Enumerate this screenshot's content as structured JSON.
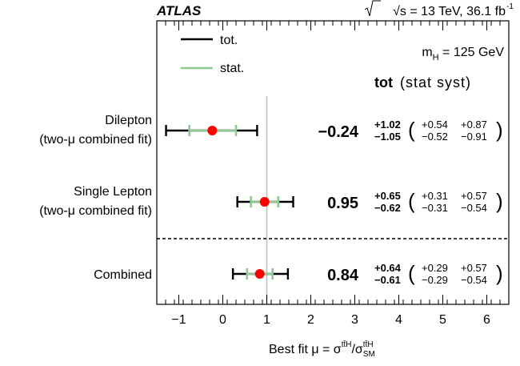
{
  "header": {
    "experiment": "ATLAS",
    "sqrt_symbol": "√s",
    "energy_text": " = 13 TeV, 36.1 fb",
    "lumi_exp": "-1"
  },
  "legend": {
    "tot_label": "tot.",
    "stat_label": "stat."
  },
  "mass_label": {
    "prefix": "m",
    "sub": "H",
    "suffix": " = 125 GeV"
  },
  "column_header": {
    "tot": "tot",
    "rest": "(stat syst)"
  },
  "xaxis": {
    "label_prefix": "Best fit μ = σ",
    "num_sup": "tt̄H",
    "slash": "/σ",
    "den_sup": "tt̄H",
    "den_sub": "SM"
  },
  "colors": {
    "tot": "#000000",
    "stat": "#8fc98f",
    "point": "#ff0000",
    "sm_line": "#c0c0c0"
  },
  "chart_data": {
    "type": "scatter",
    "xlim": [
      -1.5,
      6.5
    ],
    "x_ticks": [
      -1,
      0,
      1,
      2,
      3,
      4,
      5,
      6
    ],
    "x_tick_labels": [
      "−1",
      "0",
      "1",
      "2",
      "3",
      "4",
      "5",
      "6"
    ],
    "sm_reference": 1,
    "rows": [
      {
        "name_lines": [
          "Dilepton",
          "(two-μ combined fit)"
        ],
        "value": -0.24,
        "value_label": "−0.24",
        "tot_up": 1.02,
        "tot_down": 1.05,
        "tot_up_label": "+1.02",
        "tot_down_label": "−1.05",
        "stat_up": 0.54,
        "stat_down": 0.52,
        "stat_up_label": "+0.54",
        "stat_down_label": "−0.52",
        "syst_up_label": "+0.87",
        "syst_down_label": "−0.91"
      },
      {
        "name_lines": [
          "Single Lepton",
          "(two-μ combined fit)"
        ],
        "value": 0.95,
        "value_label": "0.95",
        "tot_up": 0.65,
        "tot_down": 0.62,
        "tot_up_label": "+0.65",
        "tot_down_label": "−0.62",
        "stat_up": 0.31,
        "stat_down": 0.31,
        "stat_up_label": "+0.31",
        "stat_down_label": "−0.31",
        "syst_up_label": "+0.57",
        "syst_down_label": "−0.54"
      },
      {
        "name_lines": [
          "Combined"
        ],
        "value": 0.84,
        "value_label": "0.84",
        "tot_up": 0.64,
        "tot_down": 0.61,
        "tot_up_label": "+0.64",
        "tot_down_label": "−0.61",
        "stat_up": 0.29,
        "stat_down": 0.29,
        "stat_up_label": "+0.29",
        "stat_down_label": "−0.29",
        "syst_up_label": "+0.57",
        "syst_down_label": "−0.54"
      }
    ]
  }
}
